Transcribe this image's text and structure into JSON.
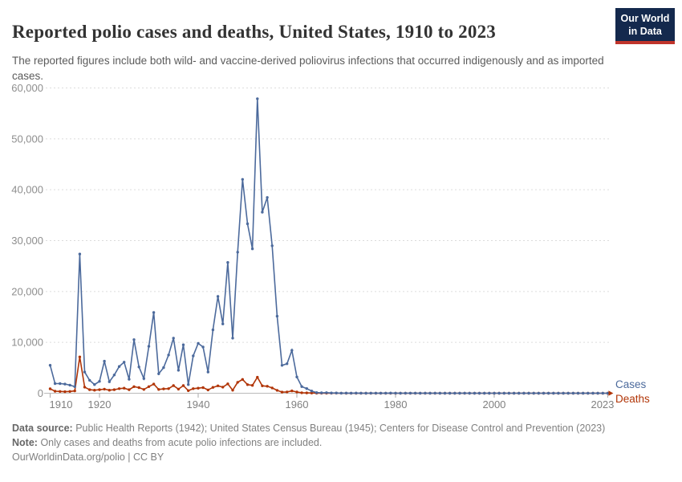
{
  "header": {
    "title": "Reported polio cases and deaths, United States, 1910 to 2023",
    "subtitle": "The reported figures include both wild- and vaccine-derived poliovirus infections that occurred indigenously and as imported cases.",
    "logo_line1": "Our World",
    "logo_line2": "in Data"
  },
  "chart_data": {
    "type": "line",
    "title": "Reported polio cases and deaths, United States, 1910 to 2023",
    "xlabel": "",
    "ylabel": "",
    "xlim": [
      1910,
      2023
    ],
    "ylim": [
      0,
      60000
    ],
    "grid": "horizontal-dashed",
    "legend_position": "right-end-of-lines",
    "x_ticks": [
      1910,
      1920,
      1940,
      1960,
      1980,
      2000,
      2023
    ],
    "y_ticks": [
      0,
      10000,
      20000,
      30000,
      40000,
      50000,
      60000
    ],
    "y_tick_labels": [
      "0",
      "10,000",
      "20,000",
      "30,000",
      "40,000",
      "50,000",
      "60,000"
    ],
    "x": [
      1910,
      1911,
      1912,
      1913,
      1914,
      1915,
      1916,
      1917,
      1918,
      1919,
      1920,
      1921,
      1922,
      1923,
      1924,
      1925,
      1926,
      1927,
      1928,
      1929,
      1930,
      1931,
      1932,
      1933,
      1934,
      1935,
      1936,
      1937,
      1938,
      1939,
      1940,
      1941,
      1942,
      1943,
      1944,
      1945,
      1946,
      1947,
      1948,
      1949,
      1950,
      1951,
      1952,
      1953,
      1954,
      1955,
      1956,
      1957,
      1958,
      1959,
      1960,
      1961,
      1962,
      1963,
      1964,
      1965,
      1966,
      1967,
      1968,
      1969,
      1970,
      1971,
      1972,
      1973,
      1974,
      1975,
      1976,
      1977,
      1978,
      1979,
      1980,
      1981,
      1982,
      1983,
      1984,
      1985,
      1986,
      1987,
      1988,
      1989,
      1990,
      1991,
      1992,
      1993,
      1994,
      1995,
      1996,
      1997,
      1998,
      1999,
      2000,
      2001,
      2002,
      2003,
      2004,
      2005,
      2006,
      2007,
      2008,
      2009,
      2010,
      2011,
      2012,
      2013,
      2014,
      2015,
      2016,
      2017,
      2018,
      2019,
      2020,
      2021,
      2022,
      2023
    ],
    "series": [
      {
        "name": "Cases",
        "color": "#4C6A9C",
        "values": [
          5500,
          1900,
          1900,
          1800,
          1600,
          1300,
          27363,
          4174,
          2543,
          1700,
          2338,
          6301,
          2255,
          3589,
          5262,
          6104,
          2750,
          10533,
          5169,
          2882,
          9220,
          15872,
          3820,
          5043,
          7510,
          10839,
          4523,
          9514,
          1705,
          7343,
          9804,
          9086,
          4167,
          12450,
          19029,
          13624,
          25698,
          10827,
          27726,
          42033,
          33300,
          28386,
          57879,
          35592,
          38476,
          28985,
          15140,
          5485,
          5787,
          8425,
          3190,
          1312,
          910,
          449,
          122,
          72,
          113,
          41,
          53,
          20,
          33,
          21,
          31,
          8,
          7,
          8,
          14,
          17,
          15,
          34,
          9,
          6,
          8,
          15,
          8,
          7,
          8,
          6,
          9,
          5,
          7,
          5,
          4,
          3,
          8,
          7,
          5,
          5,
          1,
          0,
          0,
          0,
          0,
          0,
          0,
          1,
          0,
          0,
          0,
          1,
          0,
          0,
          0,
          0,
          0,
          0,
          0,
          0,
          0,
          0,
          0,
          0,
          1,
          0
        ]
      },
      {
        "name": "Deaths",
        "color": "#B13507",
        "values": [
          870,
          400,
          350,
          300,
          350,
          450,
          7130,
          1200,
          700,
          600,
          700,
          800,
          600,
          700,
          900,
          1000,
          700,
          1300,
          1100,
          750,
          1300,
          1800,
          750,
          850,
          900,
          1500,
          800,
          1500,
          500,
          900,
          1000,
          1100,
          650,
          1150,
          1450,
          1200,
          1850,
          600,
          2150,
          2720,
          1686,
          1551,
          3145,
          1450,
          1368,
          1043,
          566,
          221,
          255,
          454,
          230,
          90,
          60,
          41,
          17,
          16,
          9,
          16,
          24,
          13,
          7,
          0,
          0,
          0,
          0,
          0,
          0,
          0,
          0,
          0,
          0,
          0,
          0,
          0,
          0,
          0,
          0,
          0,
          0,
          0,
          0,
          0,
          0,
          0,
          0,
          0,
          0,
          0,
          0,
          0,
          0,
          0,
          0,
          0,
          0,
          0,
          0,
          0,
          0,
          0,
          0,
          0,
          0,
          0,
          0,
          0,
          0,
          0,
          0,
          0,
          0,
          0,
          0,
          0
        ]
      }
    ]
  },
  "footer": {
    "data_source_label": "Data source:",
    "data_source": "Public Health Reports (1942); United States Census Bureau (1945); Centers for Disease Control and Prevention (2023)",
    "note_label": "Note:",
    "note": "Only cases and deaths from acute polio infections are included.",
    "attribution": "OurWorldinData.org/polio | CC BY"
  },
  "colors": {
    "cases": "#4C6A9C",
    "deaths": "#B13507",
    "logo_bg": "#14294D",
    "logo_red": "#C0342B",
    "gridline": "#dcdcdc",
    "axis": "#bababa",
    "tick_label": "#808080"
  }
}
